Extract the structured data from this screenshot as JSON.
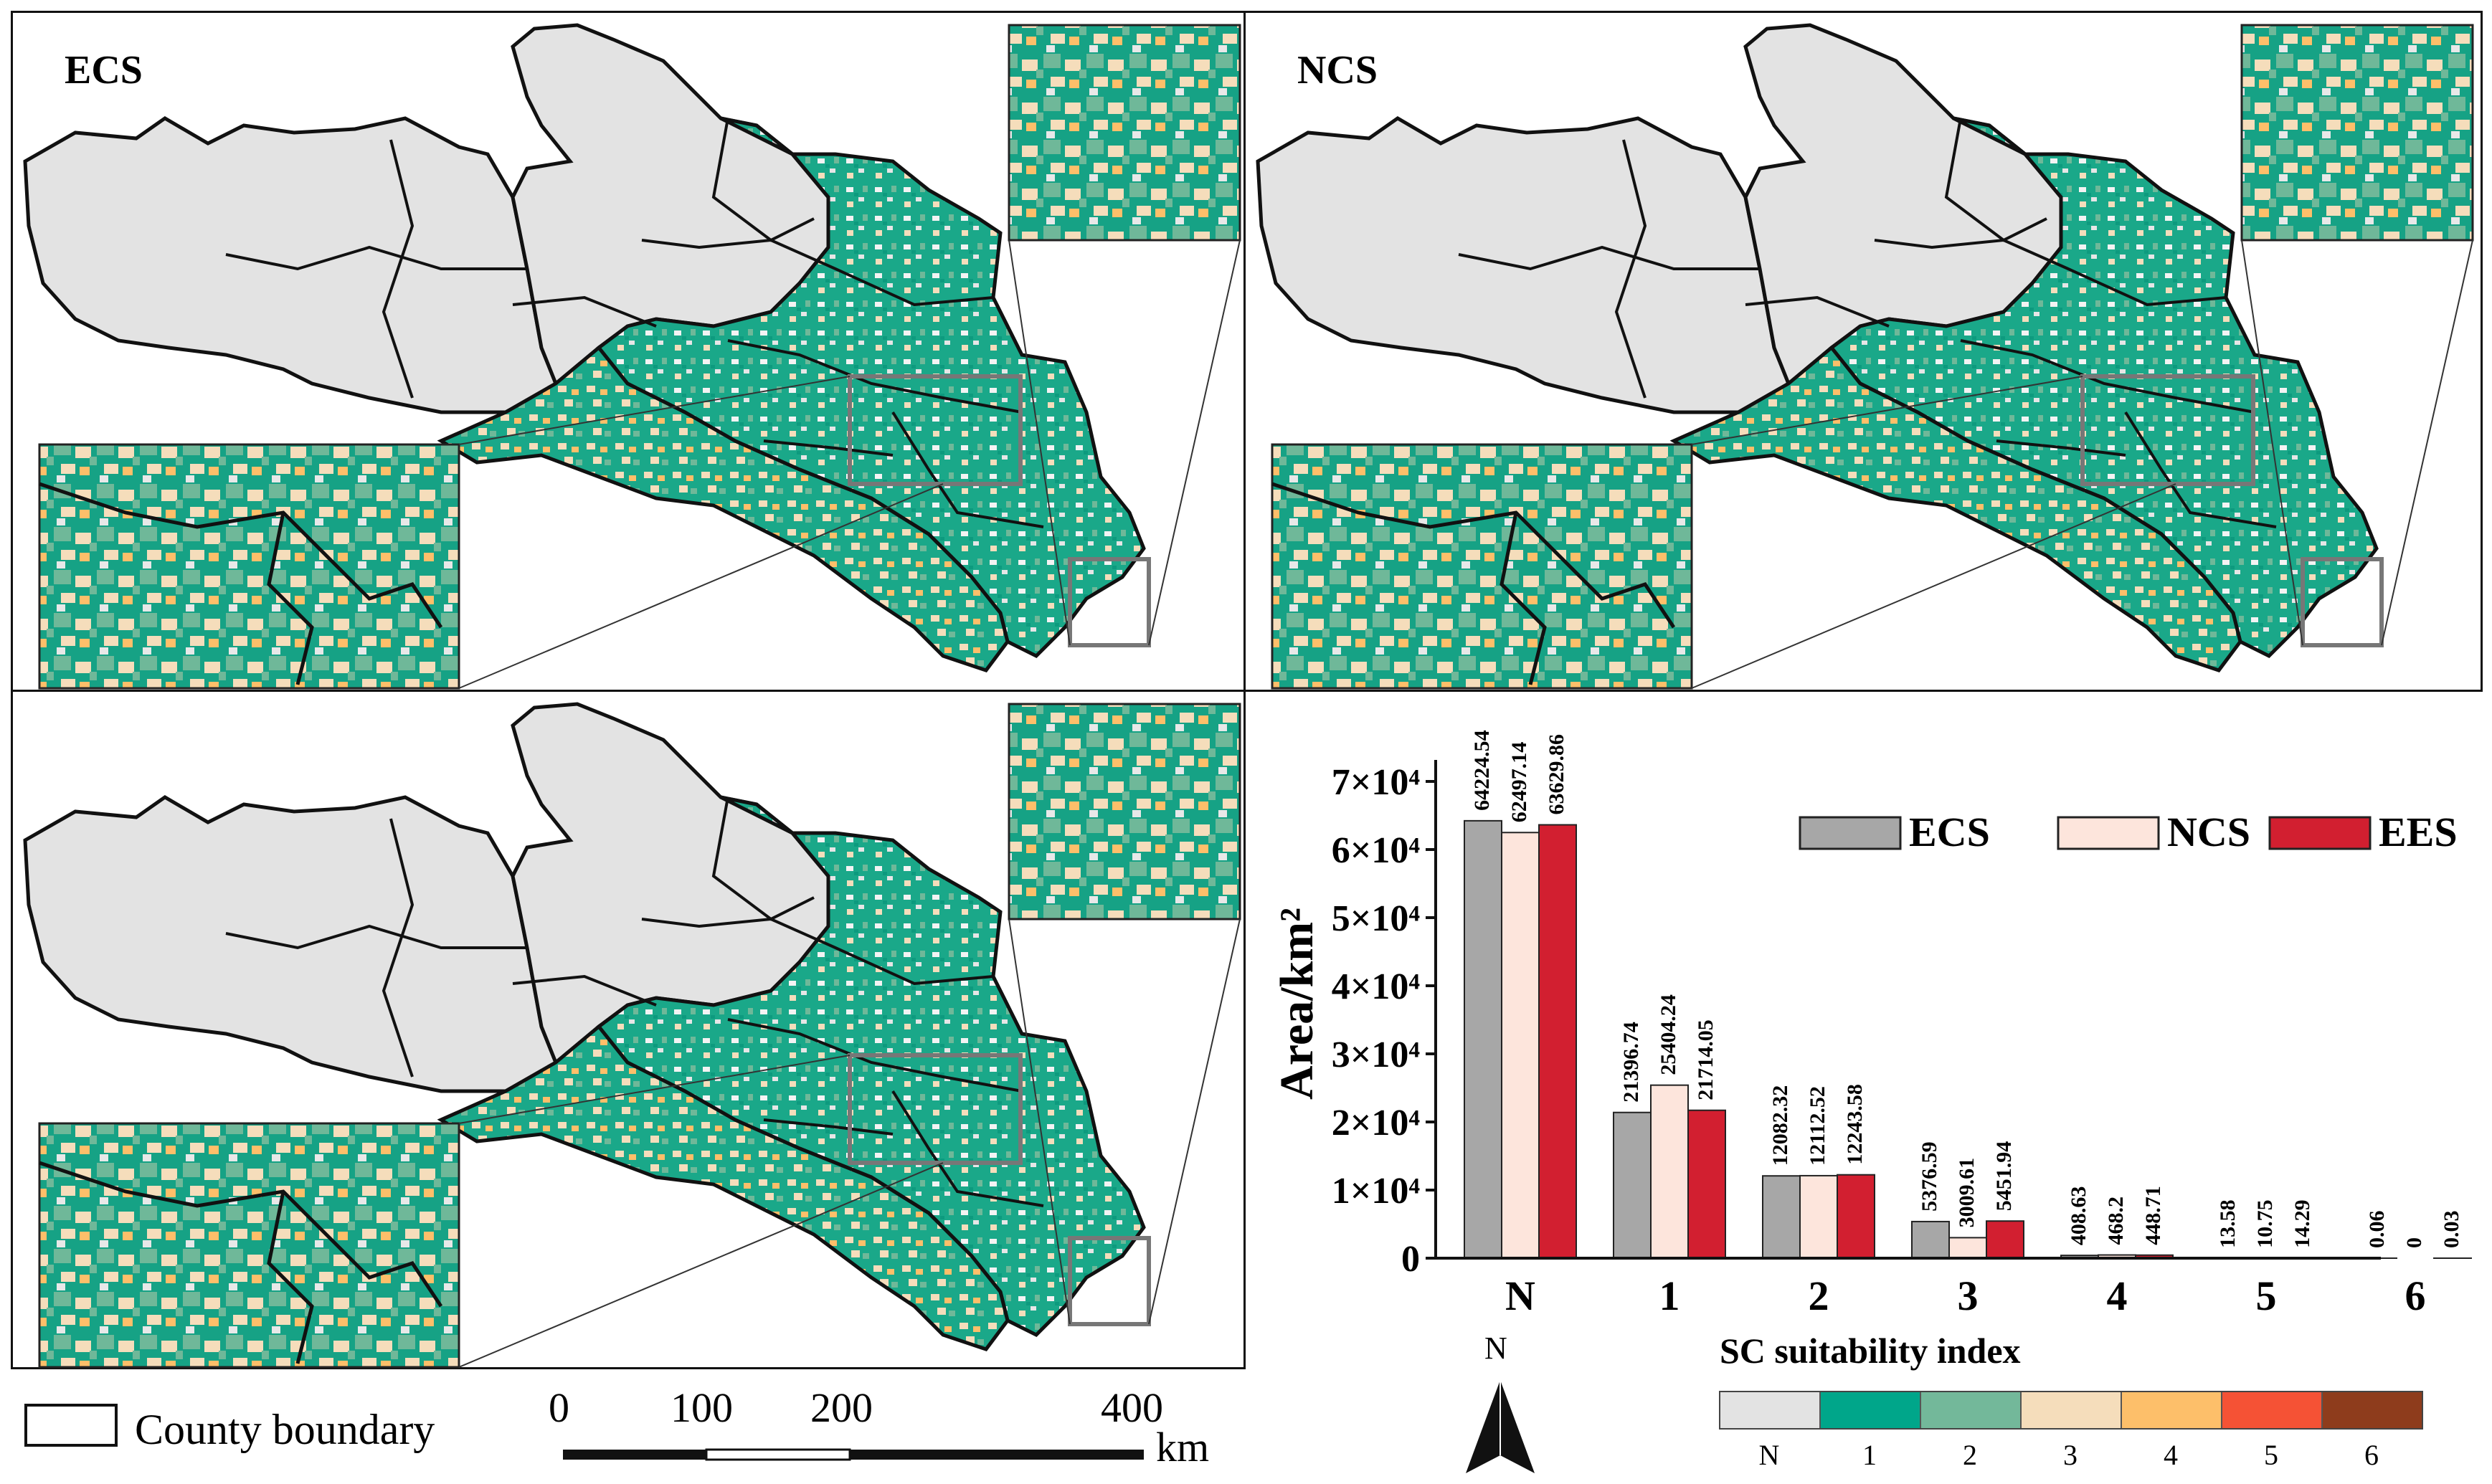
{
  "panels": [
    {
      "title": "ECS"
    },
    {
      "title": "NCS"
    },
    {
      "title": ""
    }
  ],
  "legend": {
    "county_boundary": "County boundary"
  },
  "scale_bar": {
    "labels": [
      "0",
      "100",
      "200",
      "400"
    ],
    "unit": "km"
  },
  "north_arrow": {
    "label": "N"
  },
  "suitability": {
    "title": "SC suitability index",
    "classes": [
      {
        "label": "N",
        "color": "#e3e3e3"
      },
      {
        "label": "1",
        "color": "#00a68a"
      },
      {
        "label": "2",
        "color": "#73b89a"
      },
      {
        "label": "3",
        "color": "#f5ddbb"
      },
      {
        "label": "4",
        "color": "#fdbf6a"
      },
      {
        "label": "5",
        "color": "#f55235"
      },
      {
        "label": "6",
        "color": "#8e3c1c"
      }
    ]
  },
  "chart_data": {
    "type": "bar",
    "categories": [
      "N",
      "1",
      "2",
      "3",
      "4",
      "5",
      "6"
    ],
    "series": [
      {
        "name": "ECS",
        "color": "#a7a7a7",
        "values": [
          64224.54,
          21396.74,
          12082.32,
          5376.59,
          408.63,
          13.58,
          0.06
        ]
      },
      {
        "name": "NCS",
        "color": "#fde5dc",
        "values": [
          62497.14,
          25404.24,
          12112.52,
          3009.61,
          468.2,
          10.75,
          0
        ]
      },
      {
        "name": "EES",
        "color": "#d21f30",
        "values": [
          63629.86,
          21714.05,
          12243.58,
          5451.94,
          448.71,
          14.29,
          0.03
        ]
      }
    ],
    "value_labels": [
      [
        "64224.54",
        "21396.74",
        "12082.32",
        "5376.59",
        "408.63",
        "13.58",
        "0.06"
      ],
      [
        "62497.14",
        "25404.24",
        "12112.52",
        "3009.61",
        "468.2",
        "10.75",
        "0"
      ],
      [
        "63629.86",
        "21714.05",
        "12243.58",
        "5451.94",
        "448.71",
        "14.29",
        "0.03"
      ]
    ],
    "ylabel": "Area/km²",
    "ylim": [
      0,
      70000
    ],
    "yticks": [
      "0",
      "1×10⁴",
      "2×10⁴",
      "3×10⁴",
      "4×10⁴",
      "5×10⁴",
      "6×10⁴",
      "7×10⁴"
    ],
    "legend_position": "top-right"
  }
}
